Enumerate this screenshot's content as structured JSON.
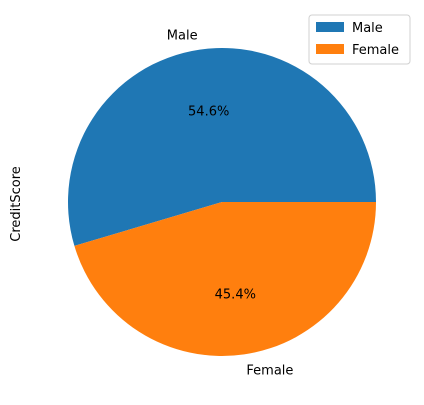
{
  "chart_data": {
    "type": "pie",
    "ylabel": "CreditScore",
    "slices": [
      {
        "label": "Male",
        "value": 54.6,
        "pct_label": "54.6%",
        "color": "#1f77b4"
      },
      {
        "label": "Female",
        "value": 45.4,
        "pct_label": "45.4%",
        "color": "#ff7f0e"
      }
    ],
    "start_angle_deg": 0,
    "direction": "counterclockwise",
    "legend": {
      "position": "top-right",
      "entries": [
        "Male",
        "Female"
      ]
    }
  }
}
